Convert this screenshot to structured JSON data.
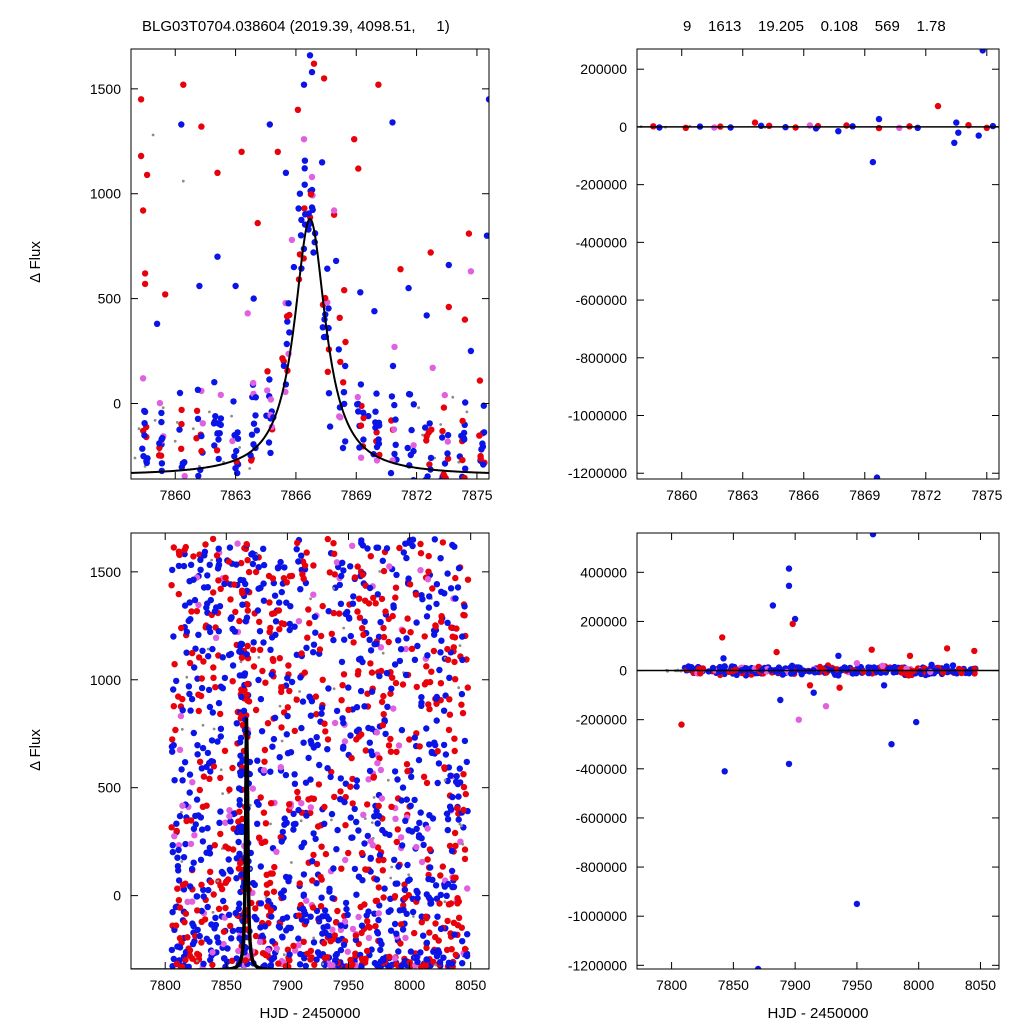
{
  "header": {
    "left": "BLG03T0704.038604 (2019.39, 4098.51,     1)",
    "right": "9    1613    19.205    0.108    569    1.78"
  },
  "colors": {
    "red": "#e8000b",
    "blue": "#0a14e6",
    "violet": "#e060e0",
    "gray": "#8c8c8c",
    "model": "#000000"
  },
  "chart_data": [
    {
      "id": "top-left",
      "type": "scatter",
      "xlabel": "",
      "ylabel": "Δ Flux",
      "xlim": [
        7857.8,
        7875.6
      ],
      "ylim": [
        -360,
        1690
      ],
      "xticks": [
        7860,
        7863,
        7866,
        7869,
        7872,
        7875
      ],
      "yticks": [
        0,
        500,
        1000,
        1500
      ],
      "grid": false,
      "model_curve": {
        "type": "lorentzian",
        "t0": 7866.7,
        "peak": 1225,
        "width": 0.95,
        "base": -345
      },
      "series": [
        {
          "color": "red",
          "points": [
            [
              7858.3,
              1450
            ],
            [
              7858.3,
              1180
            ],
            [
              7858.4,
              920
            ],
            [
              7858.5,
              620
            ],
            [
              7858.5,
              570
            ],
            [
              7858.6,
              1090
            ],
            [
              7859.5,
              520
            ],
            [
              7860.4,
              1520
            ],
            [
              7861.3,
              1320
            ],
            [
              7862.1,
              1100
            ],
            [
              7863.3,
              1200
            ],
            [
              7864.1,
              860
            ],
            [
              7865.1,
              1200
            ],
            [
              7866.1,
              1400
            ],
            [
              7866.9,
              1620
            ],
            [
              7867.4,
              1550
            ],
            [
              7868.4,
              540
            ],
            [
              7868.9,
              1260
            ],
            [
              7870.1,
              1520
            ],
            [
              7871.2,
              640
            ],
            [
              7872.7,
              720
            ],
            [
              7874.6,
              810
            ],
            [
              7874.4,
              400
            ],
            [
              7873.6,
              460
            ],
            [
              7869.1,
              1120
            ],
            [
              7867.9,
              900
            ]
          ]
        },
        {
          "color": "blue",
          "points": [
            [
              7859.1,
              380
            ],
            [
              7860.3,
              1330
            ],
            [
              7861.2,
              560
            ],
            [
              7862.1,
              700
            ],
            [
              7863.0,
              560
            ],
            [
              7863.9,
              500
            ],
            [
              7864.7,
              1330
            ],
            [
              7865.5,
              1100
            ],
            [
              7866.2,
              1000
            ],
            [
              7866.7,
              1660
            ],
            [
              7867.3,
              1150
            ],
            [
              7868.0,
              680
            ],
            [
              7869.2,
              530
            ],
            [
              7869.9,
              440
            ],
            [
              7870.8,
              1340
            ],
            [
              7871.6,
              550
            ],
            [
              7872.5,
              420
            ],
            [
              7873.6,
              660
            ],
            [
              7874.7,
              250
            ],
            [
              7875.6,
              1450
            ],
            [
              7875.5,
              800
            ],
            [
              7866.4,
              1520
            ],
            [
              7866.8,
              1580
            ],
            [
              7865.9,
              650
            ],
            [
              7867.7,
              -110
            ],
            [
              7869.6,
              -60
            ]
          ]
        },
        {
          "color": "violet",
          "points": [
            [
              7858.4,
              120
            ],
            [
              7861.3,
              60
            ],
            [
              7863.6,
              430
            ],
            [
              7865.8,
              780
            ],
            [
              7866.4,
              1260
            ],
            [
              7867.9,
              920
            ],
            [
              7870.9,
              270
            ],
            [
              7872.8,
              170
            ],
            [
              7873.4,
              40
            ],
            [
              7874.7,
              630
            ],
            [
              7866.8,
              1080
            ]
          ]
        },
        {
          "color": "gray",
          "points": [
            [
              7858.0,
              -260
            ],
            [
              7858.2,
              -120
            ],
            [
              7858.5,
              -300
            ],
            [
              7858.9,
              1280
            ],
            [
              7859.0,
              -80
            ],
            [
              7859.2,
              -230
            ],
            [
              7859.4,
              -20
            ],
            [
              7860.0,
              -180
            ],
            [
              7860.1,
              -90
            ],
            [
              7860.4,
              1060
            ],
            [
              7860.9,
              -120
            ],
            [
              7861.2,
              -300
            ],
            [
              7861.7,
              -40
            ],
            [
              7862.0,
              -150
            ],
            [
              7862.4,
              -280
            ],
            [
              7862.8,
              -60
            ],
            [
              7863.2,
              -210
            ],
            [
              7863.7,
              -310
            ],
            [
              7864.1,
              -130
            ],
            [
              7872.1,
              -20
            ],
            [
              7872.3,
              -150
            ],
            [
              7872.9,
              -260
            ],
            [
              7873.2,
              -100
            ],
            [
              7873.8,
              30
            ],
            [
              7874.1,
              -280
            ],
            [
              7874.5,
              -40
            ],
            [
              7871.5,
              -300
            ]
          ]
        }
      ]
    },
    {
      "id": "top-right",
      "type": "scatter",
      "xlabel": "",
      "ylabel": "",
      "xlim": [
        7857.8,
        7875.6
      ],
      "ylim": [
        -1220000,
        270000
      ],
      "xticks": [
        7860,
        7863,
        7866,
        7869,
        7872,
        7875
      ],
      "yticks": [
        200000,
        0,
        -200000,
        -400000,
        -600000,
        -800000,
        -1000000,
        -1200000
      ],
      "grid": false,
      "series": [
        {
          "color": "red",
          "points": [
            [
              7858.6,
              2000
            ],
            [
              7860.2,
              -3000
            ],
            [
              7861.9,
              1000
            ],
            [
              7863.6,
              15000
            ],
            [
              7864.3,
              4000
            ],
            [
              7865.6,
              -2000
            ],
            [
              7866.7,
              3000
            ],
            [
              7868.1,
              5000
            ],
            [
              7869.7,
              -4000
            ],
            [
              7871.2,
              2000
            ],
            [
              7872.6,
              72000
            ],
            [
              7874.1,
              6000
            ],
            [
              7875.0,
              -3000
            ]
          ]
        },
        {
          "color": "blue",
          "points": [
            [
              7858.9,
              -2000
            ],
            [
              7860.9,
              1000
            ],
            [
              7862.4,
              -2000
            ],
            [
              7863.9,
              4000
            ],
            [
              7865.1,
              -1000
            ],
            [
              7866.6,
              -5000
            ],
            [
              7867.7,
              -15000
            ],
            [
              7868.4,
              2000
            ],
            [
              7869.4,
              -122000
            ],
            [
              7869.6,
              -1215000
            ],
            [
              7869.7,
              27000
            ],
            [
              7871.6,
              -3000
            ],
            [
              7873.4,
              -55000
            ],
            [
              7873.6,
              -20000
            ],
            [
              7874.6,
              -30000
            ],
            [
              7874.8,
              265000
            ],
            [
              7873.5,
              15000
            ],
            [
              7875.3,
              3000
            ]
          ]
        },
        {
          "color": "violet",
          "points": [
            [
              7861.6,
              -2000
            ],
            [
              7866.3,
              5000
            ],
            [
              7870.7,
              -3000
            ]
          ]
        },
        {
          "color": "gray",
          "points": [
            [
              7858.0,
              1000
            ],
            [
              7859.2,
              -1000
            ],
            [
              7860.4,
              2000
            ],
            [
              7862.0,
              0
            ],
            [
              7864.1,
              -1000
            ]
          ]
        }
      ],
      "model_line": true
    },
    {
      "id": "bottom-left",
      "type": "scatter",
      "xlabel": "HJD - 2450000",
      "ylabel": "Δ Flux",
      "xlim": [
        7772,
        8065
      ],
      "ylim": [
        -340,
        1680
      ],
      "xticks": [
        7800,
        7850,
        7900,
        7950,
        8000,
        8050
      ],
      "yticks": [
        0,
        500,
        1000,
        1500
      ],
      "grid": false,
      "dense": {
        "xmin": 7805,
        "xmax": 8048,
        "ymin": -330,
        "ymax": 1660,
        "count": 1500
      },
      "model_curve": {
        "type": "lorentzian",
        "t0": 7866.7,
        "peak": 1225,
        "width": 0.95,
        "base": -345
      }
    },
    {
      "id": "bottom-right",
      "type": "scatter",
      "xlabel": "HJD - 2450000",
      "ylabel": "",
      "xlim": [
        7772,
        8065
      ],
      "ylim": [
        -1215000,
        560000
      ],
      "xticks": [
        7800,
        7850,
        7900,
        7950,
        8000,
        8050
      ],
      "yticks": [
        400000,
        200000,
        0,
        -200000,
        -400000,
        -600000,
        -800000,
        -1000000,
        -1200000
      ],
      "grid": false,
      "series": [
        {
          "color": "blue",
          "points": [
            [
              7843,
              -410000
            ],
            [
              7870,
              -1215000
            ],
            [
              7895,
              415000
            ],
            [
              7895,
              345000
            ],
            [
              7895,
              -380000
            ],
            [
              7882,
              265000
            ],
            [
              7900,
              210000
            ],
            [
              7978,
              -300000
            ],
            [
              7950,
              -950000
            ],
            [
              7963,
              555000
            ],
            [
              7998,
              -210000
            ],
            [
              7888,
              -120000
            ],
            [
              7915,
              -90000
            ],
            [
              7935,
              60000
            ],
            [
              7972,
              -60000
            ],
            [
              7842,
              50000
            ]
          ]
        },
        {
          "color": "red",
          "points": [
            [
              7808,
              -220000
            ],
            [
              7841,
              135000
            ],
            [
              7885,
              75000
            ],
            [
              7898,
              190000
            ],
            [
              7912,
              -60000
            ],
            [
              7936,
              -70000
            ],
            [
              7962,
              85000
            ],
            [
              7993,
              60000
            ],
            [
              8023,
              90000
            ],
            [
              8045,
              80000
            ]
          ]
        },
        {
          "color": "violet",
          "points": [
            [
              7903,
              -200000
            ],
            [
              7925,
              -145000
            ],
            [
              7950,
              30000
            ]
          ]
        }
      ],
      "dense_band": {
        "xmin": 7808,
        "xmax": 8046,
        "count": 320,
        "amp": 25000
      },
      "model_line": true
    }
  ]
}
